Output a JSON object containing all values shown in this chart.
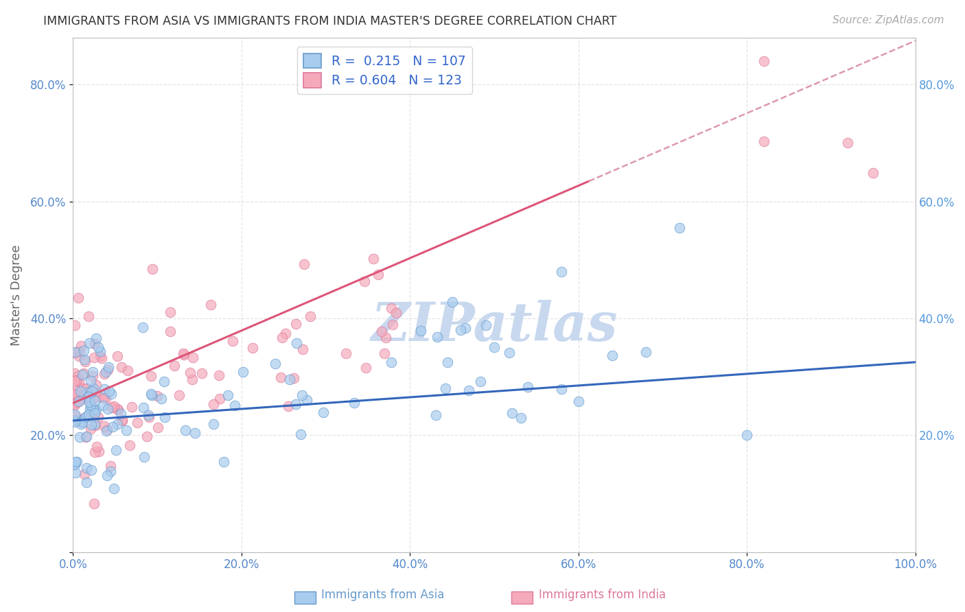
{
  "title": "IMMIGRANTS FROM ASIA VS IMMIGRANTS FROM INDIA MASTER'S DEGREE CORRELATION CHART",
  "source_text": "Source: ZipAtlas.com",
  "ylabel": "Master's Degree",
  "xlim": [
    0.0,
    1.0
  ],
  "ylim": [
    0.0,
    0.88
  ],
  "xticks": [
    0.0,
    0.2,
    0.4,
    0.6,
    0.8,
    1.0
  ],
  "yticks": [
    0.0,
    0.2,
    0.4,
    0.6,
    0.8
  ],
  "xticklabels": [
    "0.0%",
    "20.0%",
    "40.0%",
    "60.0%",
    "80.0%",
    "100.0%"
  ],
  "yticklabels": [
    "",
    "20.0%",
    "40.0%",
    "60.0%",
    "80.0%"
  ],
  "series1_color": "#A8CCEE",
  "series1_edge": "#6699CC",
  "series2_color": "#F5AABB",
  "series2_edge": "#DD7799",
  "series1_label": "Immigrants from Asia",
  "series2_label": "Immigrants from India",
  "series1_R": 0.215,
  "series1_N": 107,
  "series2_R": 0.604,
  "series2_N": 123,
  "trend1_color": "#3366BB",
  "trend2_color": "#DD5577",
  "trend2_dashed_color": "#DD99AA",
  "legend_text_color": "#3366CC",
  "watermark_color": "#C8D8EE",
  "background_color": "#FFFFFF",
  "grid_color": "#DDDDDD",
  "title_color": "#333333",
  "axis_label_color": "#666666",
  "tick_color": "#5588CC",
  "right_tick_color": "#5599DD",
  "source_color": "#AAAAAA"
}
